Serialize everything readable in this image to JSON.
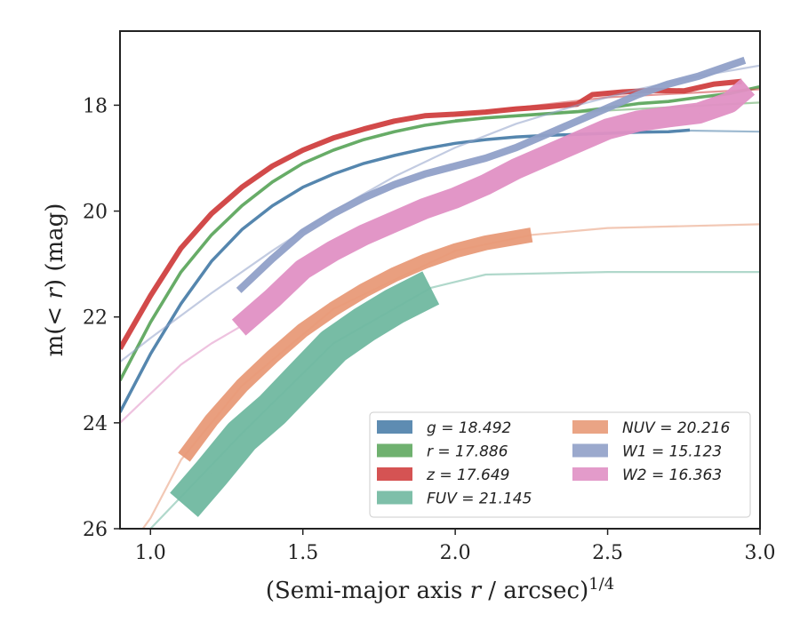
{
  "chart_data": {
    "type": "line",
    "xlabel": "(Semi-major axis r / arcsec)^{1/4}",
    "ylabel": "m(< r) (mag)",
    "xlim": [
      0.9,
      3.0
    ],
    "ylim": [
      26,
      16.6
    ],
    "y_inverted": true,
    "x_ticks": [
      "1.0",
      "1.5",
      "2.0",
      "2.5",
      "3.0"
    ],
    "y_ticks": [
      "18",
      "20",
      "22",
      "24",
      "26"
    ],
    "grid": false,
    "legend_position": "lower-right",
    "series": [
      {
        "name": "g = 18.492",
        "color": "#4c7faa",
        "band_width": 0.05,
        "data": [
          [
            0.9,
            23.8
          ],
          [
            1.0,
            22.7
          ],
          [
            1.1,
            21.75
          ],
          [
            1.2,
            20.95
          ],
          [
            1.3,
            20.35
          ],
          [
            1.4,
            19.9
          ],
          [
            1.5,
            19.55
          ],
          [
            1.6,
            19.3
          ],
          [
            1.7,
            19.1
          ],
          [
            1.8,
            18.95
          ],
          [
            1.9,
            18.82
          ],
          [
            2.0,
            18.72
          ],
          [
            2.1,
            18.65
          ],
          [
            2.2,
            18.6
          ],
          [
            2.3,
            18.57
          ],
          [
            2.4,
            18.55
          ],
          [
            2.5,
            18.53
          ],
          [
            2.6,
            18.51
          ],
          [
            2.7,
            18.5
          ],
          [
            2.77,
            18.47
          ]
        ],
        "model": [
          [
            2.77,
            18.48
          ],
          [
            3.0,
            18.5
          ]
        ]
      },
      {
        "name": "r = 17.886",
        "color": "#5fa85f",
        "band_width": 0.06,
        "data": [
          [
            0.9,
            23.2
          ],
          [
            1.0,
            22.1
          ],
          [
            1.1,
            21.15
          ],
          [
            1.2,
            20.45
          ],
          [
            1.3,
            19.9
          ],
          [
            1.4,
            19.45
          ],
          [
            1.5,
            19.1
          ],
          [
            1.6,
            18.85
          ],
          [
            1.7,
            18.65
          ],
          [
            1.8,
            18.5
          ],
          [
            1.9,
            18.38
          ],
          [
            2.0,
            18.3
          ],
          [
            2.1,
            18.24
          ],
          [
            2.2,
            18.2
          ],
          [
            2.3,
            18.16
          ],
          [
            2.4,
            18.12
          ],
          [
            2.5,
            18.05
          ],
          [
            2.6,
            17.97
          ],
          [
            2.7,
            17.93
          ],
          [
            2.8,
            17.85
          ],
          [
            2.9,
            17.78
          ],
          [
            3.0,
            17.65
          ]
        ],
        "model": [
          [
            2.0,
            18.28
          ],
          [
            2.5,
            18.1
          ],
          [
            3.0,
            17.95
          ]
        ]
      },
      {
        "name": "z = 17.649",
        "color": "#d04040",
        "band_width": 0.1,
        "data": [
          [
            0.9,
            22.6
          ],
          [
            1.0,
            21.6
          ],
          [
            1.1,
            20.7
          ],
          [
            1.2,
            20.05
          ],
          [
            1.3,
            19.55
          ],
          [
            1.4,
            19.15
          ],
          [
            1.5,
            18.85
          ],
          [
            1.6,
            18.62
          ],
          [
            1.7,
            18.45
          ],
          [
            1.8,
            18.3
          ],
          [
            1.9,
            18.2
          ],
          [
            2.0,
            18.17
          ],
          [
            2.1,
            18.13
          ],
          [
            2.2,
            18.07
          ],
          [
            2.3,
            18.03
          ],
          [
            2.4,
            17.98
          ],
          [
            2.45,
            17.8
          ],
          [
            2.55,
            17.75
          ],
          [
            2.65,
            17.72
          ],
          [
            2.75,
            17.73
          ],
          [
            2.85,
            17.6
          ],
          [
            2.94,
            17.55
          ]
        ],
        "model": [
          [
            2.0,
            18.18
          ],
          [
            2.5,
            17.85
          ],
          [
            3.0,
            17.7
          ]
        ]
      },
      {
        "name": "FUV = 21.145",
        "color": "#70b8a0",
        "band_width": 0.7,
        "data": [
          [
            1.11,
            25.55
          ],
          [
            1.2,
            24.95
          ],
          [
            1.3,
            24.25
          ],
          [
            1.4,
            23.75
          ],
          [
            1.5,
            23.15
          ],
          [
            1.6,
            22.55
          ],
          [
            1.7,
            22.15
          ],
          [
            1.8,
            21.8
          ],
          [
            1.92,
            21.45
          ]
        ],
        "model": [
          [
            0.95,
            26.3
          ],
          [
            1.0,
            26.0
          ],
          [
            1.1,
            25.4
          ],
          [
            1.3,
            24.2
          ],
          [
            1.6,
            22.5
          ],
          [
            1.92,
            21.45
          ],
          [
            2.1,
            21.2
          ],
          [
            2.5,
            21.15
          ],
          [
            3.0,
            21.15
          ]
        ]
      },
      {
        "name": "NUV = 20.216",
        "color": "#e89a78",
        "band_width": 0.28,
        "data": [
          [
            1.11,
            24.65
          ],
          [
            1.2,
            23.95
          ],
          [
            1.3,
            23.3
          ],
          [
            1.4,
            22.75
          ],
          [
            1.5,
            22.25
          ],
          [
            1.6,
            21.85
          ],
          [
            1.7,
            21.5
          ],
          [
            1.8,
            21.2
          ],
          [
            1.9,
            20.95
          ],
          [
            2.0,
            20.75
          ],
          [
            2.1,
            20.6
          ],
          [
            2.25,
            20.45
          ]
        ],
        "model": [
          [
            0.95,
            26.2
          ],
          [
            1.0,
            25.8
          ],
          [
            1.1,
            24.7
          ],
          [
            1.3,
            23.3
          ],
          [
            1.6,
            21.85
          ],
          [
            2.0,
            20.75
          ],
          [
            2.25,
            20.45
          ],
          [
            2.5,
            20.32
          ],
          [
            3.0,
            20.25
          ]
        ]
      },
      {
        "name": "W1 = 15.123",
        "color": "#90a0c8",
        "band_width": 0.14,
        "data": [
          [
            1.29,
            21.5
          ],
          [
            1.4,
            20.9
          ],
          [
            1.5,
            20.4
          ],
          [
            1.6,
            20.05
          ],
          [
            1.7,
            19.75
          ],
          [
            1.8,
            19.5
          ],
          [
            1.9,
            19.3
          ],
          [
            2.0,
            19.15
          ],
          [
            2.1,
            19.0
          ],
          [
            2.2,
            18.8
          ],
          [
            2.3,
            18.55
          ],
          [
            2.4,
            18.3
          ],
          [
            2.5,
            18.05
          ],
          [
            2.6,
            17.8
          ],
          [
            2.7,
            17.6
          ],
          [
            2.8,
            17.45
          ],
          [
            2.9,
            17.25
          ],
          [
            2.95,
            17.15
          ]
        ],
        "model": [
          [
            0.9,
            22.85
          ],
          [
            1.0,
            22.4
          ],
          [
            1.2,
            21.55
          ],
          [
            1.4,
            20.75
          ],
          [
            1.6,
            20.0
          ],
          [
            1.8,
            19.35
          ],
          [
            2.0,
            18.8
          ],
          [
            2.2,
            18.35
          ],
          [
            2.4,
            18.0
          ],
          [
            2.6,
            17.7
          ],
          [
            2.8,
            17.45
          ],
          [
            3.0,
            17.25
          ]
        ]
      },
      {
        "name": "W2 = 16.363",
        "color": "#e090c4",
        "band_width": 0.4,
        "data": [
          [
            1.29,
            22.2
          ],
          [
            1.4,
            21.65
          ],
          [
            1.5,
            21.1
          ],
          [
            1.6,
            20.75
          ],
          [
            1.7,
            20.45
          ],
          [
            1.8,
            20.2
          ],
          [
            1.9,
            19.95
          ],
          [
            2.0,
            19.75
          ],
          [
            2.1,
            19.5
          ],
          [
            2.2,
            19.2
          ],
          [
            2.3,
            18.95
          ],
          [
            2.4,
            18.7
          ],
          [
            2.5,
            18.45
          ],
          [
            2.6,
            18.3
          ],
          [
            2.7,
            18.22
          ],
          [
            2.8,
            18.15
          ],
          [
            2.9,
            17.95
          ],
          [
            2.96,
            17.65
          ]
        ],
        "model": [
          [
            0.9,
            24.0
          ],
          [
            1.0,
            23.45
          ],
          [
            1.1,
            22.9
          ],
          [
            1.2,
            22.5
          ],
          [
            1.29,
            22.2
          ]
        ]
      }
    ]
  }
}
